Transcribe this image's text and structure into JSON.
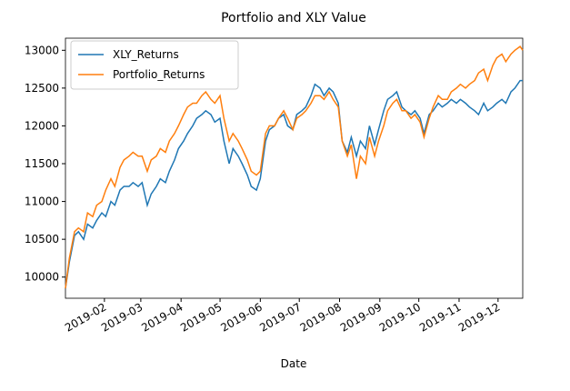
{
  "chart_data": {
    "type": "line",
    "title": "Portfolio and XLY Value",
    "x_label": "Date",
    "x": [
      1,
      4,
      8,
      11,
      15,
      18,
      22,
      25,
      29,
      32,
      36,
      39,
      43,
      46,
      50,
      53,
      57,
      60,
      64,
      67,
      71,
      74,
      78,
      81,
      85,
      88,
      92,
      95,
      99,
      102,
      106,
      109,
      113,
      116,
      120,
      123,
      127,
      130,
      134,
      137,
      141,
      144,
      148,
      151,
      155,
      158,
      162,
      165,
      169,
      172,
      176,
      179,
      183,
      186,
      190,
      193,
      197,
      200,
      204,
      207,
      211,
      214,
      218,
      221,
      225,
      228,
      232,
      235,
      239,
      242,
      246,
      249,
      253,
      256,
      260,
      263,
      267,
      270,
      274,
      277,
      281,
      284,
      288,
      291,
      295,
      298,
      302,
      305,
      309,
      312,
      316,
      319,
      323,
      326,
      330,
      333,
      337,
      340,
      344,
      347,
      351,
      353
    ],
    "series": [
      {
        "name": "XLY_Returns",
        "color": "#1f77b4",
        "values": [
          9850,
          10200,
          10550,
          10600,
          10500,
          10700,
          10650,
          10750,
          10850,
          10800,
          11000,
          10950,
          11150,
          11200,
          11200,
          11250,
          11200,
          11250,
          10950,
          11100,
          11200,
          11300,
          11250,
          11400,
          11550,
          11700,
          11800,
          11900,
          12000,
          12100,
          12150,
          12200,
          12150,
          12050,
          12100,
          11800,
          11500,
          11700,
          11600,
          11500,
          11350,
          11200,
          11150,
          11300,
          11800,
          11950,
          12000,
          12100,
          12150,
          12000,
          11950,
          12150,
          12200,
          12250,
          12400,
          12550,
          12500,
          12400,
          12500,
          12450,
          12300,
          11800,
          11650,
          11850,
          11600,
          11800,
          11700,
          12000,
          11750,
          11950,
          12200,
          12350,
          12400,
          12450,
          12250,
          12200,
          12150,
          12200,
          12100,
          11900,
          12150,
          12200,
          12300,
          12250,
          12300,
          12350,
          12300,
          12350,
          12300,
          12250,
          12200,
          12150,
          12300,
          12200,
          12250,
          12300,
          12350,
          12300,
          12450,
          12500,
          12600,
          12600
        ]
      },
      {
        "name": "Portfolio_Returns",
        "color": "#ff7f0e",
        "values": [
          9850,
          10250,
          10600,
          10650,
          10600,
          10850,
          10800,
          10950,
          11000,
          11150,
          11300,
          11200,
          11450,
          11550,
          11600,
          11650,
          11600,
          11600,
          11400,
          11550,
          11600,
          11700,
          11650,
          11800,
          11900,
          12000,
          12150,
          12250,
          12300,
          12300,
          12400,
          12450,
          12350,
          12300,
          12400,
          12100,
          11800,
          11900,
          11800,
          11700,
          11550,
          11400,
          11350,
          11400,
          11900,
          12000,
          12000,
          12100,
          12200,
          12100,
          11950,
          12100,
          12150,
          12200,
          12300,
          12400,
          12400,
          12350,
          12450,
          12350,
          12250,
          11800,
          11600,
          11750,
          11300,
          11600,
          11500,
          11850,
          11600,
          11800,
          12000,
          12200,
          12300,
          12350,
          12200,
          12200,
          12100,
          12150,
          12050,
          11850,
          12100,
          12250,
          12400,
          12350,
          12350,
          12450,
          12500,
          12550,
          12500,
          12550,
          12600,
          12700,
          12750,
          12600,
          12800,
          12900,
          12950,
          12850,
          12950,
          13000,
          13050,
          13000
        ]
      }
    ],
    "xlim": [
      1,
      353
    ],
    "ylim": [
      9720,
      13160
    ],
    "xticks": [
      {
        "value": 31,
        "label": "2019-02"
      },
      {
        "value": 59,
        "label": "2019-03"
      },
      {
        "value": 90,
        "label": "2019-04"
      },
      {
        "value": 120,
        "label": "2019-05"
      },
      {
        "value": 151,
        "label": "2019-06"
      },
      {
        "value": 181,
        "label": "2019-07"
      },
      {
        "value": 212,
        "label": "2019-08"
      },
      {
        "value": 243,
        "label": "2019-09"
      },
      {
        "value": 273,
        "label": "2019-10"
      },
      {
        "value": 304,
        "label": "2019-11"
      },
      {
        "value": 334,
        "label": "2019-12"
      }
    ],
    "yticks": [
      10000,
      10500,
      11000,
      11500,
      12000,
      12500,
      13000
    ],
    "legend": "upper left",
    "grid": false
  }
}
